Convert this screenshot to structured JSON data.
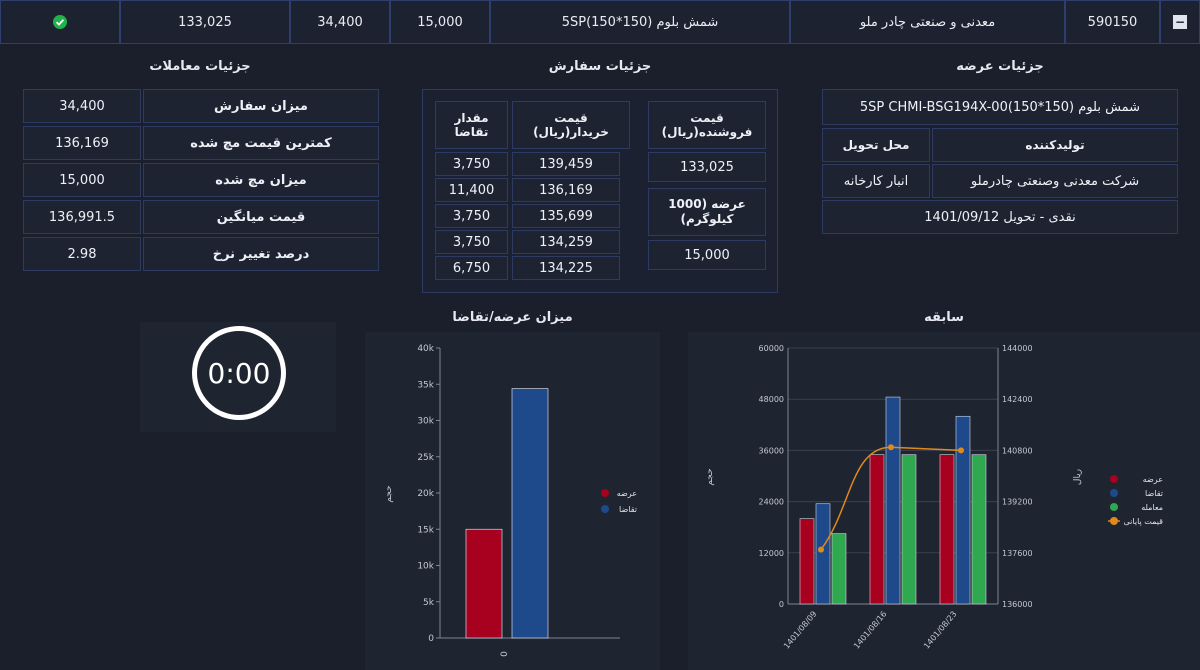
{
  "topbar": {
    "collapse_symbol": "−",
    "status_icon": "check-circle",
    "status_color": "#22b14c",
    "cells": [
      "133,025",
      "34,400",
      "15,000",
      "5SP(150*150) شمش بلوم",
      "معدنی و صنعتی چادر ملو",
      "590150"
    ]
  },
  "trades": {
    "title": "جزئیات معاملات",
    "rows": [
      {
        "label": "میزان سفارش",
        "value": "34,400"
      },
      {
        "label": "کمترین قیمت مچ شده",
        "value": "136,169"
      },
      {
        "label": "میزان مچ شده",
        "value": "15,000"
      },
      {
        "label": "قیمت میانگین",
        "value": "136,991.5"
      },
      {
        "label": "درصد تغییر نرخ",
        "value": "2.98"
      }
    ]
  },
  "orders": {
    "title": "جزئیات سفارش",
    "qty_header": "مقدار تقاضا",
    "price_header": "قیمت خریدار(ریال)",
    "seller_price_header": "قیمت فروشنده(ریال)",
    "seller_price": "133,025",
    "supply_header": "عرضه (1000 کیلوگرم)",
    "supply_value": "15,000",
    "rows": [
      {
        "qty": "3,750",
        "price": "139,459"
      },
      {
        "qty": "11,400",
        "price": "136,169"
      },
      {
        "qty": "3,750",
        "price": "135,699"
      },
      {
        "qty": "3,750",
        "price": "134,259"
      },
      {
        "qty": "6,750",
        "price": "134,225"
      }
    ]
  },
  "offer": {
    "title": "جزئیات عرضه",
    "product": "5SP CHMI-BSG194X-00(150*150) شمش بلوم",
    "producer_header": "تولیدکننده",
    "delivery_header": "محل تحویل",
    "producer": "شرکت معدنی وصنعتی چادرملو",
    "delivery": "انبار کارخانه",
    "terms": "نقدی - تحویل 1401/09/12"
  },
  "timer": {
    "value": "0:00"
  },
  "chart_data": [
    {
      "type": "bar",
      "title": "میزان عرضه/تقاضا",
      "ylabel": "حجم",
      "categories": [
        "0"
      ],
      "ylim": [
        0,
        40000
      ],
      "yticks": [
        "0",
        "5k",
        "10k",
        "15k",
        "20k",
        "25k",
        "30k",
        "35k",
        "40k"
      ],
      "series": [
        {
          "name": "عرضه",
          "values": [
            15000
          ],
          "color": "#a8001f"
        },
        {
          "name": "تقاضا",
          "values": [
            34400
          ],
          "color": "#1e4a8c"
        }
      ]
    },
    {
      "type": "bar",
      "title": "سابقه",
      "ylabel": "حجم",
      "y2label": "ریال",
      "categories": [
        "1401/08/09",
        "1401/08/16",
        "1401/08/23"
      ],
      "ylim": [
        0,
        60000
      ],
      "y2lim": [
        136000,
        144000
      ],
      "yticks": [
        "0",
        "12000",
        "24000",
        "36000",
        "48000",
        "60000"
      ],
      "y2ticks": [
        "136000",
        "137600",
        "139200",
        "140800",
        "142400",
        "144000"
      ],
      "series": [
        {
          "name": "عرضه",
          "values": [
            20000,
            35000,
            35000
          ],
          "color": "#a8001f"
        },
        {
          "name": "تقاضا",
          "values": [
            23500,
            48500,
            44000
          ],
          "color": "#1e4a8c"
        },
        {
          "name": "معامله",
          "values": [
            16500,
            35000,
            35000
          ],
          "color": "#2fa84f"
        },
        {
          "name": "قیمت پایانی",
          "values": [
            137700,
            140900,
            140800
          ],
          "color": "#e08a1e",
          "line": true
        }
      ]
    }
  ]
}
